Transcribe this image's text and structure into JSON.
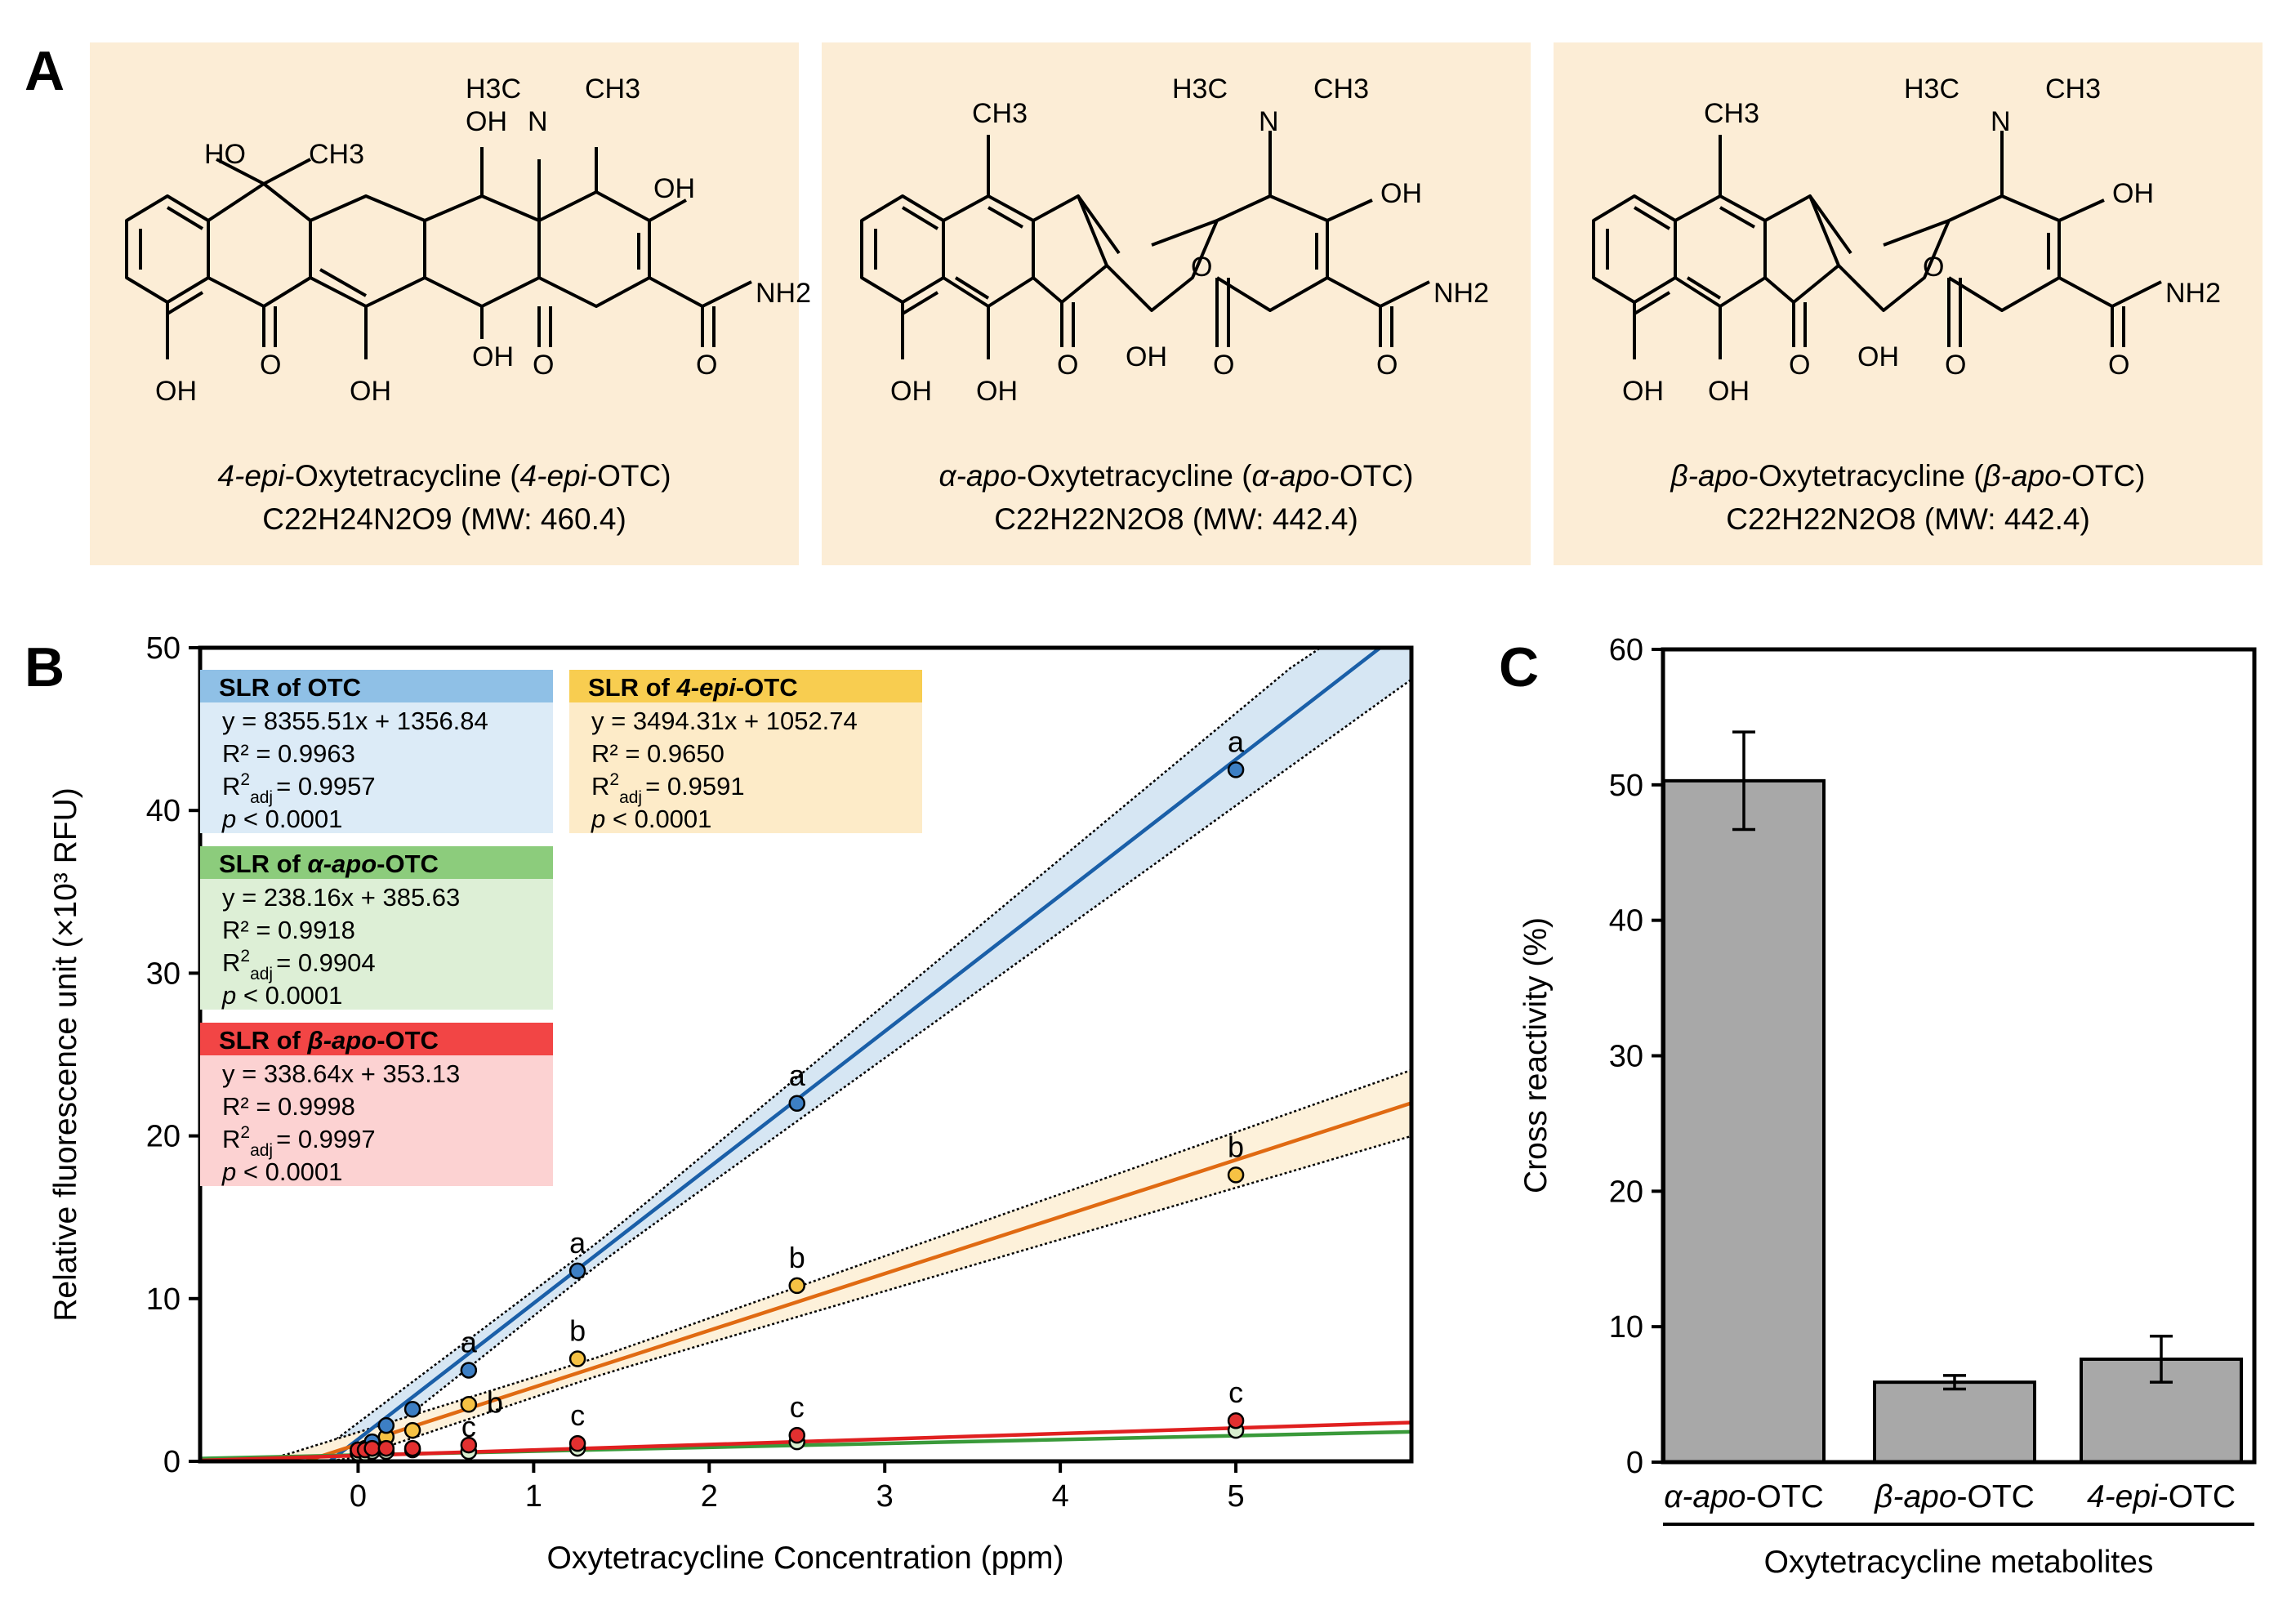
{
  "panel_labels": {
    "a": "A",
    "b": "B",
    "c": "C"
  },
  "colors": {
    "struct_bg": "#fcedd6",
    "otc": "#1a5fa8",
    "otc_point": "#3d7fc4",
    "otc_band": "#d6e6f3",
    "epi": "#e06a12",
    "epi_point": "#f6c244",
    "epi_band": "#fdf1da",
    "alpha": "#3a9a3a",
    "alpha_point": "#d9efd0",
    "beta": "#e02020",
    "beta_point": "#e23030",
    "bar": "#a8a8a8"
  },
  "structures": [
    {
      "top_labels": [
        "H3C",
        "N",
        "CH3"
      ],
      "methyl": "CH3",
      "other_labels": [
        "HO",
        "CH3",
        "OH",
        "OH",
        "NH2",
        "O",
        "OH",
        "O",
        "O",
        "OH",
        "OH",
        "OH"
      ],
      "name_parts": [
        "4-epi",
        "-Oxytetracycline (",
        "4-epi",
        "-OTC)"
      ],
      "formula": "C22H24N2O9",
      "mw": "(MW: 460.4)"
    },
    {
      "top_labels": [
        "H3C",
        "N",
        "CH3"
      ],
      "methyl": "CH3",
      "other_labels": [
        "OH",
        "O",
        "NH2",
        "O",
        "O",
        "O",
        "OH",
        "OH",
        "OH"
      ],
      "name_parts": [
        "α-apo",
        "-Oxytetracycline (",
        "α-apo",
        "-OTC)"
      ],
      "formula": "C22H22N2O8",
      "mw": "(MW: 442.4)"
    },
    {
      "top_labels": [
        "H3C",
        "N",
        "CH3"
      ],
      "methyl": "CH3",
      "other_labels": [
        "OH",
        "O",
        "NH2",
        "O",
        "O",
        "O",
        "OH",
        "OH",
        "OH"
      ],
      "name_parts": [
        "β-apo",
        "-Oxytetracycline (",
        "β-apo",
        "-OTC)"
      ],
      "formula": "C22H22N2O8",
      "mw": "(MW: 442.4)"
    }
  ],
  "chart_data": [
    {
      "type": "scatter",
      "panel": "B",
      "xlabel": "Oxytetracycline Concentration (ppm)",
      "ylabel": "Relative fluorescence unit (×10³ RFU)",
      "xlim": [
        -0.9,
        6.0
      ],
      "ylim": [
        0,
        50
      ],
      "xticks": [
        0,
        1,
        2,
        3,
        4,
        5
      ],
      "yticks": [
        0,
        10,
        20,
        30,
        40,
        50
      ],
      "series": [
        {
          "name": "OTC",
          "slope": 8.35551,
          "intercept": 1.35684,
          "x": [
            0,
            0.04,
            0.08,
            0.16,
            0.31,
            0.63,
            1.25,
            2.5,
            5.0
          ],
          "y": [
            0.7,
            0.8,
            1.2,
            2.2,
            3.2,
            5.6,
            11.7,
            22.0,
            42.5
          ],
          "point_labels": [
            "",
            "",
            "",
            "",
            "",
            "a",
            "a",
            "a",
            "a"
          ]
        },
        {
          "name": "4-epi-OTC",
          "slope": 3.49431,
          "intercept": 1.05274,
          "x": [
            0,
            0.04,
            0.08,
            0.16,
            0.31,
            0.63,
            1.25,
            2.5,
            5.0
          ],
          "y": [
            0.7,
            0.8,
            1.0,
            1.5,
            1.9,
            3.5,
            6.3,
            10.8,
            17.6
          ],
          "point_labels": [
            "",
            "",
            "",
            "",
            "",
            "b",
            "b",
            "b",
            "b"
          ]
        },
        {
          "name": "α-apo-OTC",
          "slope": 0.23816,
          "intercept": 0.38563,
          "x": [
            0,
            0.04,
            0.08,
            0.16,
            0.31,
            0.63,
            1.25,
            2.5,
            5.0
          ],
          "y": [
            0.5,
            0.5,
            0.6,
            0.6,
            0.7,
            0.6,
            0.8,
            1.2,
            1.9
          ],
          "point_labels": [
            "",
            "",
            "",
            "",
            "",
            "c",
            "",
            "",
            ""
          ]
        },
        {
          "name": "β-apo-OTC",
          "slope": 0.33864,
          "intercept": 0.35313,
          "x": [
            0,
            0.04,
            0.08,
            0.16,
            0.31,
            0.63,
            1.25,
            2.5,
            5.0
          ],
          "y": [
            0.7,
            0.7,
            0.8,
            0.8,
            0.8,
            1.0,
            1.1,
            1.6,
            2.5
          ],
          "point_labels": [
            "",
            "",
            "",
            "",
            "",
            "",
            "c",
            "c",
            "c"
          ]
        }
      ],
      "legend_boxes": [
        {
          "title_prefix": "SLR of ",
          "title_em": "",
          "title_plain": "OTC",
          "eq": "y = 8355.51x + 1356.84",
          "r2": "R² = 0.9963",
          "r2adj_val": "= 0.9957",
          "p_val": "< 0.0001"
        },
        {
          "title_prefix": "SLR of ",
          "title_em": "4-epi",
          "title_plain": "-OTC",
          "eq": "y = 3494.31x + 1052.74",
          "r2": "R² = 0.9650",
          "r2adj_val": "= 0.9591",
          "p_val": "< 0.0001"
        },
        {
          "title_prefix": "SLR of ",
          "title_em": "α-apo",
          "title_plain": "-OTC",
          "eq": "y = 238.16x + 385.63",
          "r2": "R² = 0.9918",
          "r2adj_val": "= 0.9904",
          "p_val": "< 0.0001"
        },
        {
          "title_prefix": "SLR of ",
          "title_em": "β-apo",
          "title_plain": "-OTC",
          "eq": "y = 338.64x + 353.13",
          "r2": "R² = 0.9998",
          "r2adj_val": "= 0.9997",
          "p_val": "< 0.0001"
        }
      ],
      "r2adj_label": "R",
      "r2adj_sup": "2",
      "r2adj_sub": "adj",
      "p_label": "p"
    },
    {
      "type": "bar",
      "panel": "C",
      "categories": [
        "α-apo-OTC",
        "β-apo-OTC",
        "4-epi-OTC"
      ],
      "category_parts": [
        [
          "α-apo",
          "-OTC"
        ],
        [
          "β-apo",
          "-OTC"
        ],
        [
          "4-epi",
          "-OTC"
        ]
      ],
      "values": [
        50.3,
        5.9,
        7.6
      ],
      "errors": [
        3.6,
        0.5,
        1.7
      ],
      "ylabel": "Cross reactivity (%)",
      "xlabel": "Oxytetracycline metabolites",
      "ylim": [
        0,
        60
      ],
      "yticks": [
        0,
        10,
        20,
        30,
        40,
        50,
        60
      ]
    }
  ]
}
